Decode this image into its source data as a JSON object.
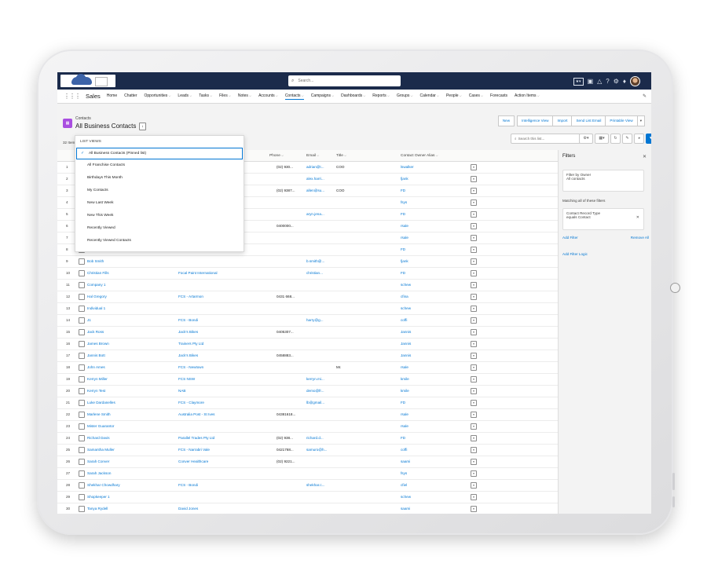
{
  "header": {
    "search_placeholder": "Search...",
    "app_name": "Sales",
    "nav_items": [
      {
        "label": "Home",
        "dropdown": false
      },
      {
        "label": "Chatter",
        "dropdown": false
      },
      {
        "label": "Opportunities",
        "dropdown": true
      },
      {
        "label": "Leads",
        "dropdown": true
      },
      {
        "label": "Tasks",
        "dropdown": true
      },
      {
        "label": "Files",
        "dropdown": true
      },
      {
        "label": "Notes",
        "dropdown": true
      },
      {
        "label": "Accounts",
        "dropdown": true
      },
      {
        "label": "Contacts",
        "dropdown": true,
        "active": true
      },
      {
        "label": "Campaigns",
        "dropdown": true
      },
      {
        "label": "Dashboards",
        "dropdown": true
      },
      {
        "label": "Reports",
        "dropdown": true
      },
      {
        "label": "Groups",
        "dropdown": true
      },
      {
        "label": "Calendar",
        "dropdown": true
      },
      {
        "label": "People",
        "dropdown": true
      },
      {
        "label": "Cases",
        "dropdown": true
      },
      {
        "label": "Forecasts",
        "dropdown": false
      },
      {
        "label": "Action Items",
        "dropdown": true
      }
    ]
  },
  "list_view": {
    "object_label": "Contacts",
    "title": "All Business Contacts",
    "items_count": "32 Items",
    "search_placeholder": "Search this list...",
    "buttons": [
      "New",
      "Intelligence View",
      "Import",
      "Send List Email",
      "Printable View"
    ]
  },
  "dropdown": {
    "heading": "LIST VIEWS",
    "items": [
      {
        "label": "All Business Contacts (Pinned list)",
        "selected": true
      },
      {
        "label": "All Franchise Contacts",
        "selected": false
      },
      {
        "label": "Birthdays This Month",
        "selected": false
      },
      {
        "label": "My Contacts",
        "selected": false
      },
      {
        "label": "New Last Week",
        "selected": false
      },
      {
        "label": "New This Week",
        "selected": false
      },
      {
        "label": "Recently Viewed",
        "selected": false
      },
      {
        "label": "Recently Viewed Contacts",
        "selected": false
      }
    ]
  },
  "table": {
    "headers": {
      "phone": "Phone",
      "email": "Email",
      "title": "Title",
      "owner": "Contact Owner Alias"
    },
    "rows": [
      {
        "n": "1",
        "name": "",
        "account": "",
        "phone": "(02) 930...",
        "email": "adrian@t...",
        "title": "COO",
        "owner": "lswalker"
      },
      {
        "n": "2",
        "name": "",
        "account": "",
        "phone": "",
        "email": "alex.harri...",
        "title": "",
        "owner": "fjank"
      },
      {
        "n": "3",
        "name": "",
        "account": "",
        "phone": "(02) 9387...",
        "email": "allen@su...",
        "title": "COO",
        "owner": "FD"
      },
      {
        "n": "4",
        "name": "",
        "account": "",
        "phone": "",
        "email": "",
        "title": "",
        "owner": "fsys"
      },
      {
        "n": "5",
        "name": "",
        "account": "",
        "phone": "",
        "email": "aryn.jena...",
        "title": "",
        "owner": "FD"
      },
      {
        "n": "6",
        "name": "",
        "account": "",
        "phone": "0400000...",
        "email": "",
        "title": "",
        "owner": "rsale"
      },
      {
        "n": "7",
        "name": "",
        "account": "",
        "phone": "",
        "email": "",
        "title": "",
        "owner": "rsale"
      },
      {
        "n": "8",
        "name": "",
        "account": "",
        "phone": "",
        "email": "",
        "title": "",
        "owner": "FD"
      },
      {
        "n": "9",
        "name": "Bob Smith",
        "account": "",
        "phone": "",
        "email": "b.smith@...",
        "title": "",
        "owner": "fjank"
      },
      {
        "n": "10",
        "name": "Christian Fills",
        "account": "Focal Paint International",
        "phone": "",
        "email": "christian...",
        "title": "",
        "owner": "FD"
      },
      {
        "n": "11",
        "name": "Company 1",
        "account": "",
        "phone": "",
        "email": "",
        "title": "",
        "owner": "schew"
      },
      {
        "n": "12",
        "name": "Hal Gregory",
        "account": "FCS - Artarmon",
        "phone": "0431 668...",
        "email": "",
        "title": "",
        "owner": "cfina"
      },
      {
        "n": "13",
        "name": "Individual 1",
        "account": "",
        "phone": "",
        "email": "",
        "title": "",
        "owner": "schew"
      },
      {
        "n": "14",
        "name": "J1",
        "account": "FCS - Bondi",
        "phone": "",
        "email": "harry@g...",
        "title": "",
        "owner": "coffi"
      },
      {
        "n": "15",
        "name": "Jack Ross",
        "account": "Jack's Bikes",
        "phone": "0405307...",
        "email": "",
        "title": "",
        "owner": "Jannis"
      },
      {
        "n": "16",
        "name": "James Brown",
        "account": "Trainers Pty Ltd",
        "phone": "",
        "email": "",
        "title": "",
        "owner": "Jannis"
      },
      {
        "n": "17",
        "name": "Jannis Bott",
        "account": "Jack's Bikes",
        "phone": "0458883...",
        "email": "",
        "title": "",
        "owner": "Jannis"
      },
      {
        "n": "18",
        "name": "John Ames",
        "account": "FCS - Newtown",
        "phone": "",
        "email": "",
        "title": "Mr.",
        "owner": "rsale"
      },
      {
        "n": "19",
        "name": "Kerryn Miller",
        "account": "FCS NSW",
        "phone": "",
        "email": "kerryn.mi...",
        "title": "",
        "owner": "kmile"
      },
      {
        "n": "20",
        "name": "Kerryn Test",
        "account": "NAB",
        "phone": "",
        "email": "demo@fr...",
        "title": "",
        "owner": "kmile"
      },
      {
        "n": "21",
        "name": "Luke Dardanelles",
        "account": "FCS - Claymore",
        "phone": "",
        "email": "lb@gmail...",
        "title": "",
        "owner": "FD"
      },
      {
        "n": "22",
        "name": "Marlene Smith",
        "account": "Australia Post - St Ives",
        "phone": "04381618...",
        "email": "",
        "title": "",
        "owner": "rsale"
      },
      {
        "n": "23",
        "name": "Mister Guarantor",
        "account": "",
        "phone": "",
        "email": "",
        "title": "",
        "owner": "rsale"
      },
      {
        "n": "24",
        "name": "Richard Davis",
        "account": "Parallel Trades Pty Ltd",
        "phone": "(02) 938...",
        "email": "richard.d...",
        "title": "",
        "owner": "FD"
      },
      {
        "n": "25",
        "name": "Samantha Muller",
        "account": "FCS - Narrabri Vale",
        "phone": "0421768...",
        "email": "samuro@h...",
        "title": "",
        "owner": "coffi"
      },
      {
        "n": "26",
        "name": "Sarah Conver",
        "account": "Conver Healthcare",
        "phone": "(02) 9221...",
        "email": "",
        "title": "",
        "owner": "saami"
      },
      {
        "n": "27",
        "name": "Sarah Jackson",
        "account": "",
        "phone": "",
        "email": "",
        "title": "",
        "owner": "fsys"
      },
      {
        "n": "28",
        "name": "Shekhar Chowdhary",
        "account": "FCS - Bondi",
        "phone": "",
        "email": "shekhar.c...",
        "title": "",
        "owner": "cfiel"
      },
      {
        "n": "29",
        "name": "Shopkeeper 1",
        "account": "",
        "phone": "",
        "email": "",
        "title": "",
        "owner": "schew"
      },
      {
        "n": "30",
        "name": "Tanya Rydell",
        "account": "David Jones",
        "phone": "",
        "email": "",
        "title": "",
        "owner": "saami"
      },
      {
        "n": "31",
        "name": "test contact",
        "account": "Territory - Banyo",
        "phone": "0424444...",
        "email": "",
        "title": "",
        "owner": "schew"
      },
      {
        "n": "32",
        "name": "Tina Turner",
        "account": "Trainers Pty Ltd",
        "phone": "",
        "email": "",
        "title": "",
        "owner": "Jannis"
      }
    ]
  },
  "filters": {
    "title": "Filters",
    "owner_label": "Filter by Owner",
    "owner_value": "All contacts",
    "matching_text": "Matching all of these filters",
    "criteria_field": "Contact Record Type",
    "criteria_value": "equals Contact",
    "add_filter": "Add Filter",
    "remove_all": "Remove All",
    "add_filter_logic": "Add Filter Logic"
  },
  "colors": {
    "header_bg": "#1b2b4b",
    "link": "#0176d3",
    "object_icon": "#a94ee0"
  },
  "icons": [
    "waffle-icon",
    "search-icon",
    "help-icon",
    "gear-icon",
    "bell-icon",
    "close-icon",
    "refresh-icon",
    "filter-icon"
  ]
}
